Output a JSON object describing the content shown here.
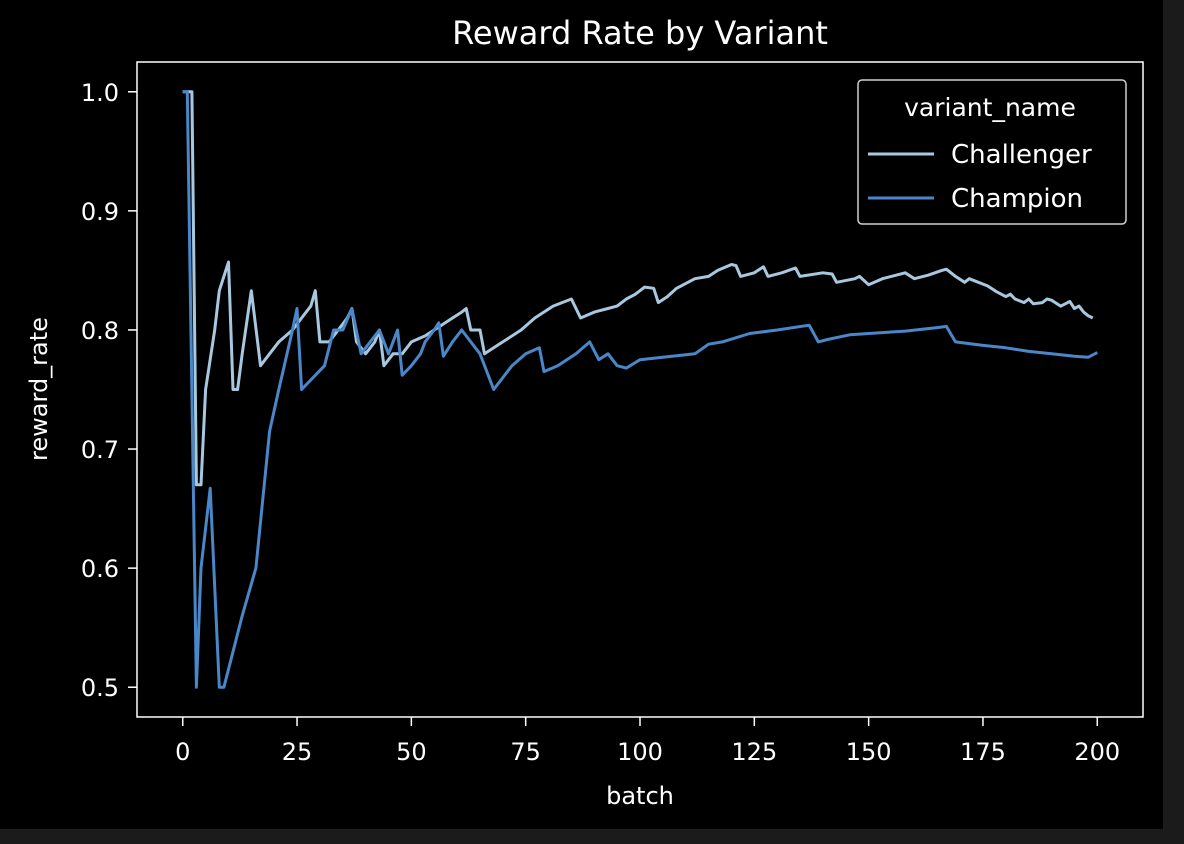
{
  "chart_data": {
    "type": "line",
    "title": "Reward Rate by Variant",
    "xlabel": "batch",
    "ylabel": "reward_rate",
    "xlim": [
      -10,
      210
    ],
    "ylim": [
      0.475,
      1.025
    ],
    "xticks": [
      0,
      25,
      50,
      75,
      100,
      125,
      150,
      175,
      200
    ],
    "xtick_labels": [
      "0",
      "25",
      "50",
      "75",
      "100",
      "125",
      "150",
      "175",
      "200"
    ],
    "yticks": [
      0.5,
      0.6,
      0.7,
      0.8,
      0.9,
      1.0
    ],
    "ytick_labels": [
      "0.5",
      "0.6",
      "0.7",
      "0.8",
      "0.9",
      "1.0"
    ],
    "grid": false,
    "legend": {
      "title": "variant_name",
      "position": "top-right"
    },
    "series": [
      {
        "name": "Challenger",
        "color": "#a8c8e0",
        "points": [
          [
            0,
            1.0
          ],
          [
            2,
            1.0
          ],
          [
            3,
            0.67
          ],
          [
            4,
            0.67
          ],
          [
            5,
            0.75
          ],
          [
            7,
            0.8
          ],
          [
            8,
            0.833
          ],
          [
            10,
            0.857
          ],
          [
            11,
            0.75
          ],
          [
            12,
            0.75
          ],
          [
            13,
            0.78
          ],
          [
            15,
            0.833
          ],
          [
            17,
            0.77
          ],
          [
            19,
            0.78
          ],
          [
            21,
            0.79
          ],
          [
            24,
            0.8
          ],
          [
            26,
            0.81
          ],
          [
            28,
            0.82
          ],
          [
            29,
            0.833
          ],
          [
            30,
            0.79
          ],
          [
            32,
            0.79
          ],
          [
            34,
            0.8
          ],
          [
            36,
            0.81
          ],
          [
            37,
            0.818
          ],
          [
            38,
            0.79
          ],
          [
            40,
            0.78
          ],
          [
            42,
            0.79
          ],
          [
            43,
            0.8
          ],
          [
            44,
            0.77
          ],
          [
            46,
            0.78
          ],
          [
            48,
            0.78
          ],
          [
            50,
            0.79
          ],
          [
            53,
            0.795
          ],
          [
            55,
            0.8
          ],
          [
            57,
            0.805
          ],
          [
            59,
            0.81
          ],
          [
            61,
            0.815
          ],
          [
            62,
            0.818
          ],
          [
            63,
            0.8
          ],
          [
            65,
            0.8
          ],
          [
            66,
            0.78
          ],
          [
            68,
            0.785
          ],
          [
            70,
            0.79
          ],
          [
            74,
            0.8
          ],
          [
            77,
            0.81
          ],
          [
            81,
            0.82
          ],
          [
            85,
            0.826
          ],
          [
            87,
            0.81
          ],
          [
            90,
            0.815
          ],
          [
            93,
            0.818
          ],
          [
            95,
            0.82
          ],
          [
            97,
            0.826
          ],
          [
            99,
            0.83
          ],
          [
            101,
            0.836
          ],
          [
            103,
            0.835
          ],
          [
            104,
            0.823
          ],
          [
            106,
            0.828
          ],
          [
            108,
            0.835
          ],
          [
            112,
            0.843
          ],
          [
            115,
            0.845
          ],
          [
            117,
            0.85
          ],
          [
            120,
            0.855
          ],
          [
            121,
            0.854
          ],
          [
            122,
            0.845
          ],
          [
            125,
            0.848
          ],
          [
            127,
            0.853
          ],
          [
            128,
            0.845
          ],
          [
            131,
            0.848
          ],
          [
            134,
            0.852
          ],
          [
            135,
            0.845
          ],
          [
            140,
            0.848
          ],
          [
            142,
            0.847
          ],
          [
            143,
            0.84
          ],
          [
            147,
            0.843
          ],
          [
            148,
            0.845
          ],
          [
            150,
            0.838
          ],
          [
            153,
            0.843
          ],
          [
            156,
            0.846
          ],
          [
            158,
            0.848
          ],
          [
            160,
            0.843
          ],
          [
            163,
            0.846
          ],
          [
            166,
            0.85
          ],
          [
            167,
            0.851
          ],
          [
            169,
            0.845
          ],
          [
            171,
            0.84
          ],
          [
            172,
            0.843
          ],
          [
            174,
            0.84
          ],
          [
            176,
            0.837
          ],
          [
            178,
            0.832
          ],
          [
            180,
            0.828
          ],
          [
            181,
            0.83
          ],
          [
            182,
            0.826
          ],
          [
            184,
            0.823
          ],
          [
            185,
            0.826
          ],
          [
            186,
            0.822
          ],
          [
            188,
            0.823
          ],
          [
            189,
            0.826
          ],
          [
            190,
            0.825
          ],
          [
            192,
            0.82
          ],
          [
            193,
            0.822
          ],
          [
            194,
            0.824
          ],
          [
            195,
            0.818
          ],
          [
            196,
            0.82
          ],
          [
            197,
            0.815
          ],
          [
            198,
            0.812
          ],
          [
            199,
            0.81
          ]
        ]
      },
      {
        "name": "Champion",
        "color": "#4a87c8",
        "points": [
          [
            0,
            1.0
          ],
          [
            1,
            1.0
          ],
          [
            3,
            0.5
          ],
          [
            4,
            0.6
          ],
          [
            6,
            0.667
          ],
          [
            8,
            0.5
          ],
          [
            9,
            0.5
          ],
          [
            13,
            0.56
          ],
          [
            16,
            0.6
          ],
          [
            19,
            0.715
          ],
          [
            21,
            0.75
          ],
          [
            24,
            0.8
          ],
          [
            25,
            0.818
          ],
          [
            26,
            0.75
          ],
          [
            31,
            0.77
          ],
          [
            33,
            0.8
          ],
          [
            35,
            0.8
          ],
          [
            37,
            0.818
          ],
          [
            39,
            0.78
          ],
          [
            41,
            0.79
          ],
          [
            43,
            0.8
          ],
          [
            45,
            0.78
          ],
          [
            47,
            0.8
          ],
          [
            48,
            0.762
          ],
          [
            50,
            0.77
          ],
          [
            52,
            0.78
          ],
          [
            53,
            0.79
          ],
          [
            55,
            0.8
          ],
          [
            56,
            0.806
          ],
          [
            57,
            0.778
          ],
          [
            59,
            0.79
          ],
          [
            61,
            0.8
          ],
          [
            63,
            0.79
          ],
          [
            65,
            0.78
          ],
          [
            68,
            0.75
          ],
          [
            70,
            0.76
          ],
          [
            72,
            0.77
          ],
          [
            75,
            0.78
          ],
          [
            78,
            0.785
          ],
          [
            79,
            0.765
          ],
          [
            82,
            0.77
          ],
          [
            86,
            0.78
          ],
          [
            89,
            0.79
          ],
          [
            91,
            0.775
          ],
          [
            93,
            0.78
          ],
          [
            95,
            0.77
          ],
          [
            97,
            0.768
          ],
          [
            100,
            0.775
          ],
          [
            105,
            0.777
          ],
          [
            112,
            0.78
          ],
          [
            115,
            0.788
          ],
          [
            118,
            0.79
          ],
          [
            124,
            0.797
          ],
          [
            130,
            0.8
          ],
          [
            137,
            0.804
          ],
          [
            139,
            0.79
          ],
          [
            141,
            0.792
          ],
          [
            146,
            0.796
          ],
          [
            150,
            0.797
          ],
          [
            158,
            0.799
          ],
          [
            165,
            0.802
          ],
          [
            167,
            0.803
          ],
          [
            169,
            0.79
          ],
          [
            175,
            0.787
          ],
          [
            180,
            0.785
          ],
          [
            185,
            0.782
          ],
          [
            190,
            0.78
          ],
          [
            195,
            0.778
          ],
          [
            198,
            0.777
          ],
          [
            200,
            0.781
          ]
        ]
      }
    ]
  }
}
